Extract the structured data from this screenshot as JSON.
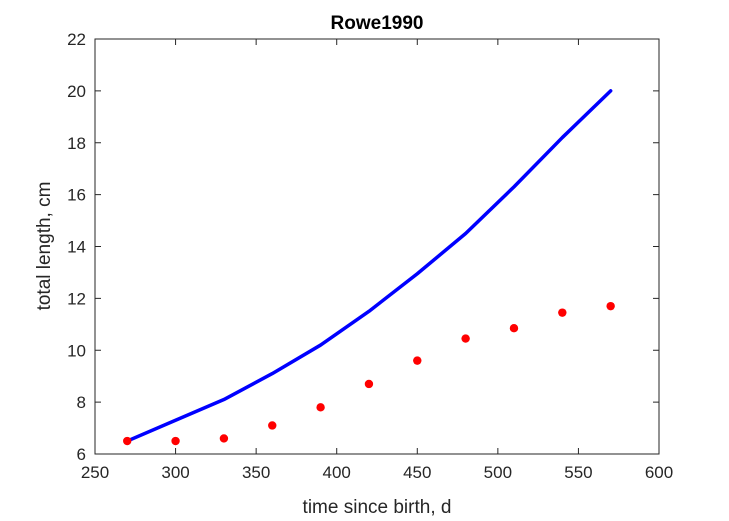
{
  "chart_data": {
    "type": "scatter",
    "title": "Rowe1990",
    "xlabel": "time since birth, d",
    "ylabel": "total length, cm",
    "xlim": [
      250,
      600
    ],
    "ylim": [
      6,
      22
    ],
    "x_ticks": [
      "250",
      "300",
      "350",
      "400",
      "450",
      "500",
      "550",
      "600"
    ],
    "y_ticks": [
      "6",
      "8",
      "10",
      "12",
      "14",
      "16",
      "18",
      "20",
      "22"
    ],
    "grid": false,
    "series": [
      {
        "kind": "line",
        "color": "#0000ff",
        "x": [
          270,
          300,
          330,
          360,
          390,
          420,
          450,
          480,
          510,
          540,
          570
        ],
        "y": [
          6.5,
          7.3,
          8.1,
          9.1,
          10.2,
          11.5,
          12.95,
          14.5,
          16.3,
          18.2,
          20.0
        ]
      },
      {
        "kind": "markers",
        "color": "#ff0000",
        "x": [
          270,
          300,
          330,
          360,
          390,
          420,
          450,
          480,
          510,
          540,
          570
        ],
        "y": [
          6.5,
          6.5,
          6.6,
          7.1,
          7.8,
          8.7,
          9.6,
          10.45,
          10.85,
          11.45,
          11.7
        ]
      }
    ]
  }
}
